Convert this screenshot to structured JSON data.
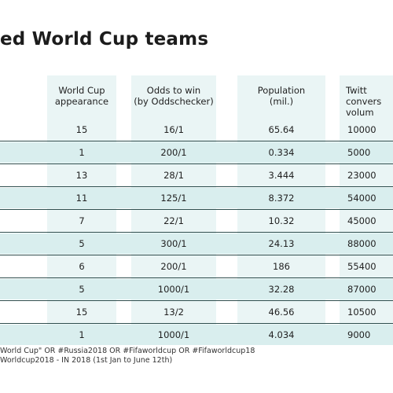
{
  "title": "ed World Cup teams",
  "headers": {
    "appearance": "World Cup\nappearance",
    "odds": "Odds to win\n(by Oddschecker)",
    "population": "Population\n(mil.)",
    "twitter": "Twitt\nconvers\nvolum"
  },
  "rows": [
    {
      "appearance": "15",
      "odds": "16/1",
      "population": "65.64",
      "twitter": "10000"
    },
    {
      "appearance": "1",
      "odds": "200/1",
      "population": "0.334",
      "twitter": "5000"
    },
    {
      "appearance": "13",
      "odds": "28/1",
      "population": "3.444",
      "twitter": "23000"
    },
    {
      "appearance": "11",
      "odds": "125/1",
      "population": "8.372",
      "twitter": "54000"
    },
    {
      "appearance": "7",
      "odds": "22/1",
      "population": "10.32",
      "twitter": "45000"
    },
    {
      "appearance": "5",
      "odds": "300/1",
      "population": "24.13",
      "twitter": "88000"
    },
    {
      "appearance": "6",
      "odds": "200/1",
      "population": "186",
      "twitter": "55400"
    },
    {
      "appearance": "5",
      "odds": "1000/1",
      "population": "32.28",
      "twitter": "87000"
    },
    {
      "appearance": "15",
      "odds": "13/2",
      "population": "46.56",
      "twitter": "10500"
    },
    {
      "appearance": "1",
      "odds": "1000/1",
      "population": "4.034",
      "twitter": "9000"
    }
  ],
  "footnotes": [
    "World Cup\" OR #Russia2018 OR #Fifaworldcup OR #Fifaworldcup18",
    "Worldcup2018 - IN 2018 (1st Jan to June 12th)"
  ],
  "colors": {
    "column_bg": "#eaf5f5",
    "row_shade": "#d9eeee",
    "rule": "#2f4f4f"
  }
}
